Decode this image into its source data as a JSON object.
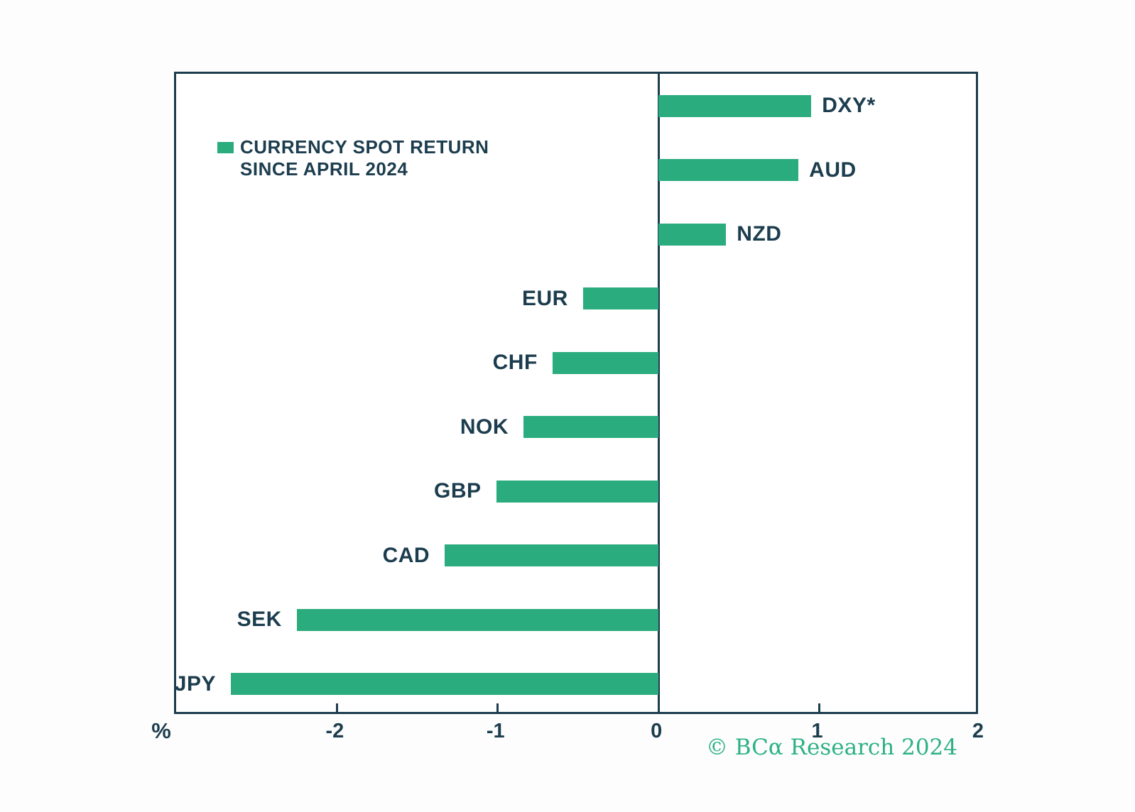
{
  "legend": {
    "line1": "CURRENCY SPOT RETURN",
    "line2": "SINCE APRIL 2024"
  },
  "watermark": "© BCα Research 2024",
  "colors": {
    "bar": "#2aac7e",
    "ink": "#1c3d4e",
    "watermark": "#2db183",
    "background": "#fdfdfd"
  },
  "chart_data": {
    "type": "bar",
    "orientation": "horizontal",
    "title": "CURRENCY SPOT RETURN SINCE APRIL 2024",
    "categories": [
      "DXY*",
      "AUD",
      "NZD",
      "EUR",
      "CHF",
      "NOK",
      "GBP",
      "CAD",
      "SEK",
      "JPY"
    ],
    "values": [
      0.95,
      0.87,
      0.42,
      -0.47,
      -0.66,
      -0.84,
      -1.01,
      -1.33,
      -2.25,
      -2.66
    ],
    "xlabel": "%",
    "ylabel": "",
    "xlim": [
      -3,
      2
    ],
    "xticks": [
      -2,
      -1,
      0,
      1,
      2
    ],
    "xtick_labels": [
      "-2",
      "-1",
      "0",
      "1",
      "2"
    ],
    "legend_position": "upper-left-inside",
    "grid": false,
    "bar_color": "#2aac7e"
  }
}
